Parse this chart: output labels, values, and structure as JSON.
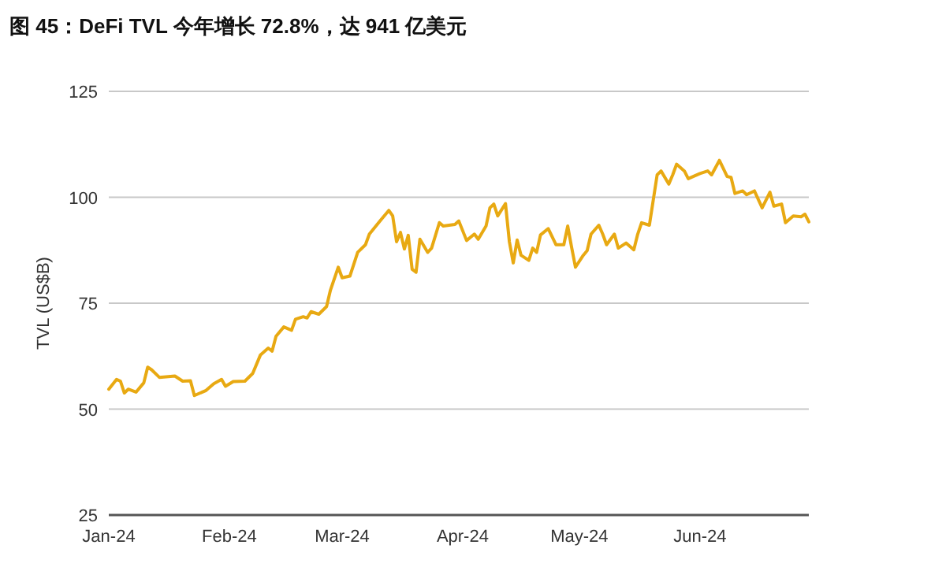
{
  "chart_data": {
    "type": "line",
    "title": "图 45：DeFi TVL 今年增长 72.8%，达 941 亿美元",
    "ylabel": "TVL (US$B)",
    "xlim": [
      "2024-01-01",
      "2024-06-29"
    ],
    "xticks": [
      {
        "value": "2024-01-01",
        "label": "Jan-24"
      },
      {
        "value": "2024-02-01",
        "label": "Feb-24"
      },
      {
        "value": "2024-03-01",
        "label": "Mar-24"
      },
      {
        "value": "2024-04-01",
        "label": "Apr-24"
      },
      {
        "value": "2024-05-01",
        "label": "May-24"
      },
      {
        "value": "2024-06-01",
        "label": "Jun-24"
      }
    ],
    "ylim": [
      25,
      125
    ],
    "yticks": [
      25,
      50,
      75,
      100,
      125
    ],
    "grid": "y",
    "marker": "none",
    "line_style": "solid",
    "series": [
      {
        "color": "#e8a912",
        "x": [
          "2024-01-01",
          "2024-01-03",
          "2024-01-04",
          "2024-01-05",
          "2024-01-06",
          "2024-01-08",
          "2024-01-10",
          "2024-01-11",
          "2024-01-12",
          "2024-01-14",
          "2024-01-18",
          "2024-01-20",
          "2024-01-22",
          "2024-01-23",
          "2024-01-26",
          "2024-01-28",
          "2024-01-30",
          "2024-01-31",
          "2024-02-02",
          "2024-02-05",
          "2024-02-07",
          "2024-02-09",
          "2024-02-11",
          "2024-02-12",
          "2024-02-13",
          "2024-02-15",
          "2024-02-17",
          "2024-02-18",
          "2024-02-20",
          "2024-02-21",
          "2024-02-22",
          "2024-02-24",
          "2024-02-26",
          "2024-02-27",
          "2024-02-29",
          "2024-03-01",
          "2024-03-03",
          "2024-03-05",
          "2024-03-07",
          "2024-03-08",
          "2024-03-11",
          "2024-03-13",
          "2024-03-14",
          "2024-03-15",
          "2024-03-16",
          "2024-03-17",
          "2024-03-18",
          "2024-03-19",
          "2024-03-20",
          "2024-03-21",
          "2024-03-23",
          "2024-03-24",
          "2024-03-26",
          "2024-03-27",
          "2024-03-30",
          "2024-03-31",
          "2024-04-02",
          "2024-04-04",
          "2024-04-05",
          "2024-04-07",
          "2024-04-08",
          "2024-04-09",
          "2024-04-10",
          "2024-04-12",
          "2024-04-13",
          "2024-04-14",
          "2024-04-15",
          "2024-04-16",
          "2024-04-18",
          "2024-04-19",
          "2024-04-20",
          "2024-04-21",
          "2024-04-23",
          "2024-04-25",
          "2024-04-27",
          "2024-04-28",
          "2024-04-29",
          "2024-04-30",
          "2024-05-02",
          "2024-05-03",
          "2024-05-04",
          "2024-05-06",
          "2024-05-07",
          "2024-05-08",
          "2024-05-10",
          "2024-05-11",
          "2024-05-13",
          "2024-05-15",
          "2024-05-16",
          "2024-05-17",
          "2024-05-19",
          "2024-05-21",
          "2024-05-22",
          "2024-05-24",
          "2024-05-25",
          "2024-05-26",
          "2024-05-28",
          "2024-05-29",
          "2024-06-01",
          "2024-06-03",
          "2024-06-04",
          "2024-06-06",
          "2024-06-08",
          "2024-06-09",
          "2024-06-10",
          "2024-06-12",
          "2024-06-13",
          "2024-06-15",
          "2024-06-17",
          "2024-06-19",
          "2024-06-20",
          "2024-06-22",
          "2024-06-23",
          "2024-06-25",
          "2024-06-27",
          "2024-06-28",
          "2024-06-29"
        ],
        "values": [
          54.7,
          57.0,
          56.6,
          53.8,
          54.7,
          54.0,
          56.2,
          59.9,
          59.3,
          57.5,
          57.8,
          56.6,
          56.7,
          53.2,
          54.4,
          56.0,
          57.0,
          55.4,
          56.5,
          56.6,
          58.4,
          62.8,
          64.4,
          63.7,
          67.2,
          69.4,
          68.6,
          71.2,
          71.8,
          71.5,
          73.0,
          72.4,
          74.2,
          78.1,
          83.5,
          81.0,
          81.4,
          87.0,
          88.8,
          91.3,
          94.7,
          96.9,
          95.6,
          89.5,
          91.7,
          87.8,
          91.0,
          83.0,
          82.3,
          90.1,
          87.0,
          88.0,
          94.0,
          93.2,
          93.6,
          94.4,
          89.8,
          91.3,
          90.1,
          93.2,
          97.5,
          98.4,
          95.6,
          98.5,
          89.5,
          84.5,
          89.9,
          86.3,
          85.1,
          88.0,
          87.0,
          91.1,
          92.6,
          88.8,
          88.8,
          93.2,
          88.2,
          83.5,
          86.3,
          87.4,
          91.3,
          93.4,
          91.3,
          88.8,
          91.3,
          88.0,
          89.2,
          87.6,
          91.3,
          94.0,
          93.4,
          105.3,
          106.2,
          103.1,
          105.3,
          107.8,
          106.2,
          104.4,
          105.6,
          106.2,
          105.3,
          108.7,
          104.9,
          104.7,
          100.9,
          101.5,
          100.6,
          101.5,
          97.5,
          101.2,
          97.9,
          98.4,
          94.0,
          95.6,
          95.4,
          96.0,
          94.2
        ]
      }
    ]
  }
}
